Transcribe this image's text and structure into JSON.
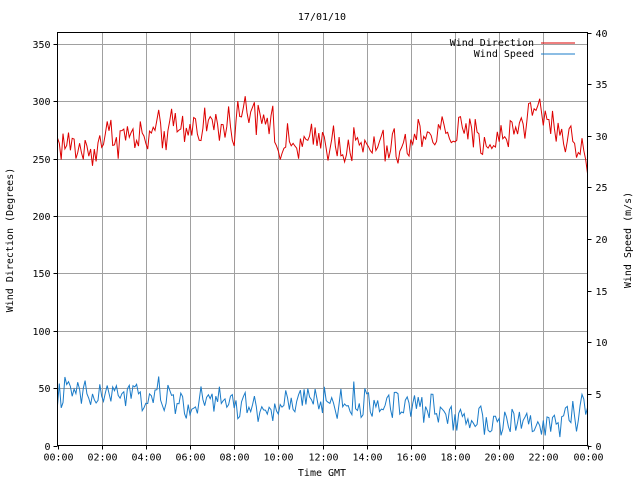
{
  "chart_data": {
    "type": "line",
    "title": "17/01/10",
    "xlabel": "Time GMT",
    "ylabel_left": "Wind Direction (Degrees)",
    "ylabel_right": "Wind Speed (m/s)",
    "x_ticks": [
      "00:00",
      "02:00",
      "04:00",
      "06:00",
      "08:00",
      "10:00",
      "12:00",
      "14:00",
      "16:00",
      "18:00",
      "20:00",
      "22:00",
      "00:00"
    ],
    "x_range_hours": [
      0,
      24
    ],
    "y_left_ticks": [
      0,
      50,
      100,
      150,
      200,
      250,
      300,
      350
    ],
    "y_left_range": [
      0,
      360
    ],
    "y_right_ticks": [
      0,
      5,
      10,
      15,
      20,
      25,
      30,
      35,
      40
    ],
    "y_right_range": [
      0,
      40
    ],
    "grid": true,
    "legend_position": "top-right",
    "series": [
      {
        "name": "Wind Direction",
        "axis": "left",
        "color": "#dd0000",
        "anchors": [
          [
            0.0,
            265
          ],
          [
            0.5,
            262
          ],
          [
            1.0,
            258
          ],
          [
            1.5,
            255
          ],
          [
            2.0,
            268
          ],
          [
            2.5,
            272
          ],
          [
            3.0,
            270
          ],
          [
            3.5,
            268
          ],
          [
            4.0,
            266
          ],
          [
            4.5,
            272
          ],
          [
            5.0,
            274
          ],
          [
            5.5,
            275
          ],
          [
            6.0,
            276
          ],
          [
            6.5,
            282
          ],
          [
            7.0,
            280
          ],
          [
            7.5,
            275
          ],
          [
            8.0,
            285
          ],
          [
            8.5,
            292
          ],
          [
            9.0,
            295
          ],
          [
            9.5,
            290
          ],
          [
            10.0,
            258
          ],
          [
            10.5,
            260
          ],
          [
            11.0,
            262
          ],
          [
            11.5,
            262
          ],
          [
            12.0,
            268
          ],
          [
            12.5,
            265
          ],
          [
            13.0,
            262
          ],
          [
            13.5,
            260
          ],
          [
            14.0,
            258
          ],
          [
            14.5,
            262
          ],
          [
            15.0,
            258
          ],
          [
            15.5,
            258
          ],
          [
            16.0,
            260
          ],
          [
            16.5,
            275
          ],
          [
            17.0,
            272
          ],
          [
            17.5,
            274
          ],
          [
            18.0,
            272
          ],
          [
            18.5,
            270
          ],
          [
            19.0,
            268
          ],
          [
            19.5,
            266
          ],
          [
            20.0,
            264
          ],
          [
            20.5,
            275
          ],
          [
            21.0,
            282
          ],
          [
            21.5,
            292
          ],
          [
            22.0,
            290
          ],
          [
            22.5,
            280
          ],
          [
            23.0,
            268
          ],
          [
            23.5,
            262
          ],
          [
            24.0,
            250
          ]
        ],
        "noise": 9,
        "min": 217,
        "max": 317
      },
      {
        "name": "Wind Speed",
        "axis": "right",
        "color": "#1a7bc8",
        "anchors": [
          [
            0.0,
            4.8
          ],
          [
            0.5,
            5.2
          ],
          [
            1.0,
            5.0
          ],
          [
            1.5,
            4.6
          ],
          [
            2.0,
            4.8
          ],
          [
            2.5,
            5.0
          ],
          [
            3.0,
            5.0
          ],
          [
            3.5,
            4.8
          ],
          [
            4.0,
            4.6
          ],
          [
            4.5,
            4.7
          ],
          [
            5.0,
            4.5
          ],
          [
            5.5,
            4.2
          ],
          [
            6.0,
            3.8
          ],
          [
            6.5,
            4.0
          ],
          [
            7.0,
            4.2
          ],
          [
            7.5,
            4.3
          ],
          [
            8.0,
            4.2
          ],
          [
            8.5,
            3.8
          ],
          [
            9.0,
            3.6
          ],
          [
            9.5,
            3.4
          ],
          [
            10.0,
            3.6
          ],
          [
            10.5,
            3.9
          ],
          [
            11.0,
            4.0
          ],
          [
            11.5,
            4.5
          ],
          [
            12.0,
            4.4
          ],
          [
            12.5,
            4.0
          ],
          [
            13.0,
            4.1
          ],
          [
            13.5,
            4.0
          ],
          [
            14.0,
            3.9
          ],
          [
            14.5,
            4.0
          ],
          [
            15.0,
            4.3
          ],
          [
            15.5,
            4.1
          ],
          [
            16.0,
            3.9
          ],
          [
            16.5,
            3.5
          ],
          [
            17.0,
            3.4
          ],
          [
            17.5,
            3.2
          ],
          [
            18.0,
            3.0
          ],
          [
            18.5,
            2.8
          ],
          [
            19.0,
            2.7
          ],
          [
            19.5,
            2.6
          ],
          [
            20.0,
            2.5
          ],
          [
            20.5,
            2.3
          ],
          [
            21.0,
            2.2
          ],
          [
            21.5,
            1.8
          ],
          [
            22.0,
            1.9
          ],
          [
            22.5,
            2.2
          ],
          [
            23.0,
            2.8
          ],
          [
            23.5,
            3.2
          ],
          [
            24.0,
            3.5
          ]
        ],
        "noise": 0.8,
        "min": 0.5,
        "max": 7.0
      }
    ]
  }
}
